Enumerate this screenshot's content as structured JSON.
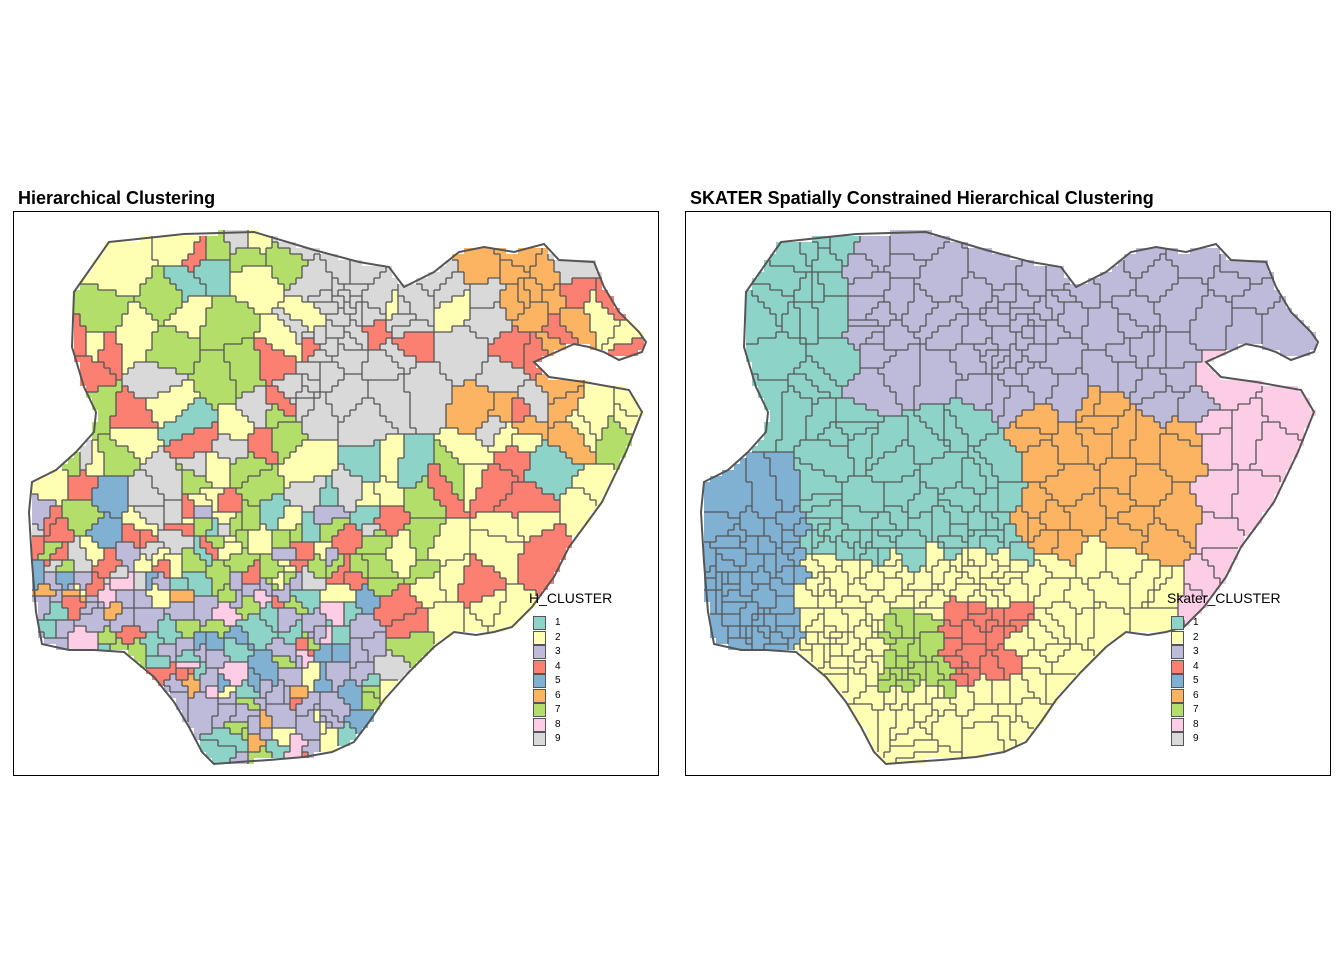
{
  "figure": {
    "left_map": {
      "title": "Hierarchical Clustering",
      "legend_title": "H_CLUSTER",
      "legend_items": [
        {
          "label": "1",
          "color": "#8DD3C7"
        },
        {
          "label": "2",
          "color": "#FFFFB3"
        },
        {
          "label": "3",
          "color": "#BEBADA"
        },
        {
          "label": "4",
          "color": "#FB8072"
        },
        {
          "label": "5",
          "color": "#80B1D3"
        },
        {
          "label": "6",
          "color": "#FDB462"
        },
        {
          "label": "7",
          "color": "#B3DE69"
        },
        {
          "label": "8",
          "color": "#FCCDE5"
        },
        {
          "label": "9",
          "color": "#D9D9D9"
        }
      ]
    },
    "right_map": {
      "title": "SKATER Spatially Constrained Hierarchical Clustering",
      "legend_title": "Skater_CLUSTER",
      "legend_items": [
        {
          "label": "1",
          "color": "#8DD3C7"
        },
        {
          "label": "2",
          "color": "#FFFFB3"
        },
        {
          "label": "3",
          "color": "#BEBADA"
        },
        {
          "label": "4",
          "color": "#FB8072"
        },
        {
          "label": "5",
          "color": "#80B1D3"
        },
        {
          "label": "6",
          "color": "#FDB462"
        },
        {
          "label": "7",
          "color": "#B3DE69"
        },
        {
          "label": "8",
          "color": "#FCCDE5"
        },
        {
          "label": "9",
          "color": "#D9D9D9"
        }
      ]
    },
    "boundary_color": "#555555"
  }
}
